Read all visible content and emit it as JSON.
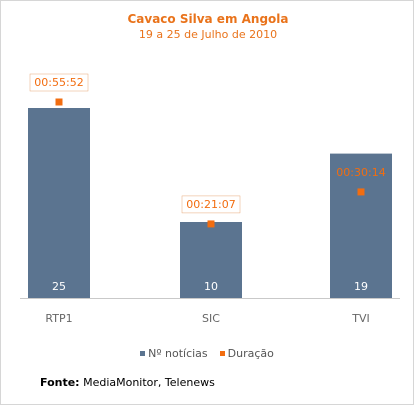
{
  "colors": {
    "bar": "#5b7490",
    "marker": "#f26d10",
    "title": "#e9731b",
    "axis_text": "#666666"
  },
  "chart_data": {
    "type": "bar",
    "title": "Cavaco Silva em Angola",
    "subtitle": "19 a 25 de Julho de 2010",
    "categories": [
      "RTP1",
      "SIC",
      "TVI"
    ],
    "series": [
      {
        "name": "Nº notícias",
        "type": "bar",
        "values": [
          25,
          10,
          19
        ]
      },
      {
        "name": "Duração",
        "type": "scatter",
        "values": [
          "00:55:52",
          "00:21:07",
          "00:30:14"
        ],
        "seconds": [
          3352,
          1267,
          1814
        ]
      }
    ],
    "legend_position": "bottom",
    "grid": false
  },
  "legend": {
    "items": [
      {
        "label": "Nº notícias"
      },
      {
        "label": "Duração"
      }
    ]
  },
  "source": {
    "label": "Fonte:",
    "text": "MediaMonitor, Telenews"
  }
}
